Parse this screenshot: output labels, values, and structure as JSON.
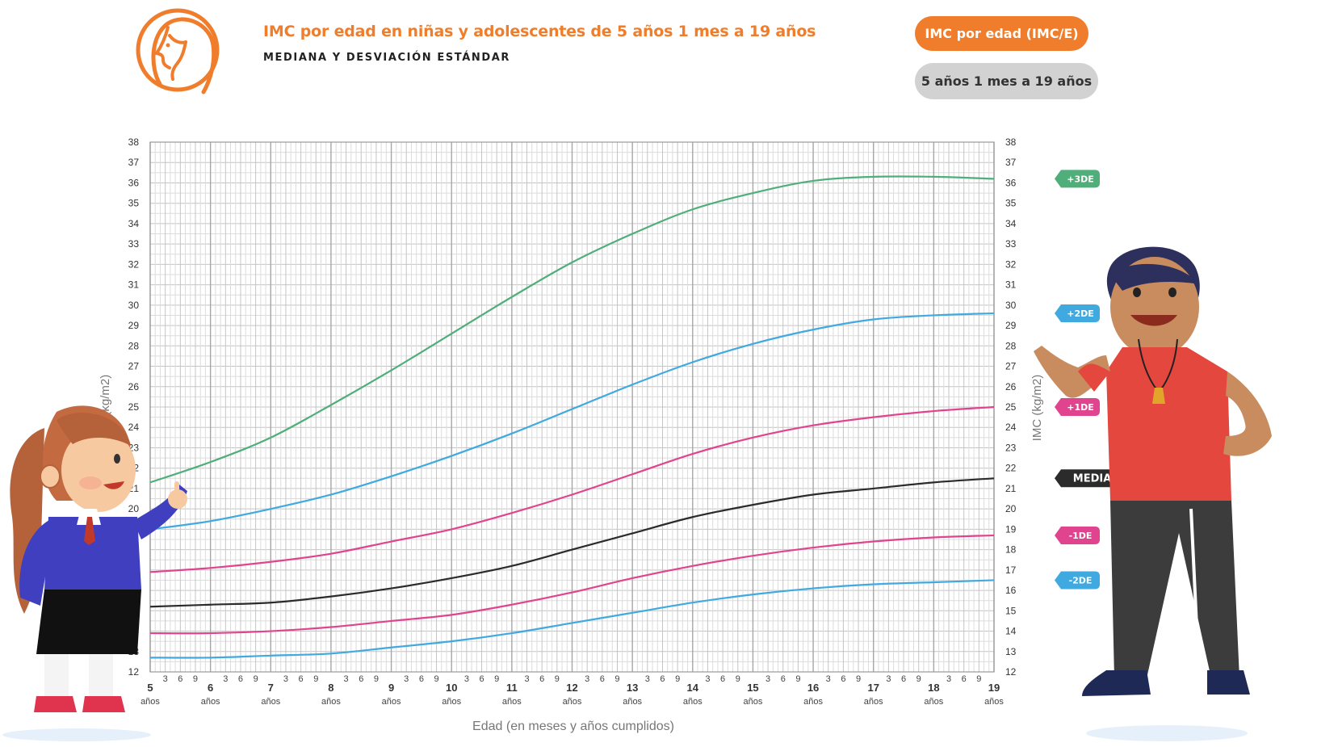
{
  "header": {
    "title": "IMC por edad en niñas y adolescentes de 5 años 1 mes a 19 años",
    "subtitle": "MEDIANA Y DESVIACIÓN ESTÁNDAR",
    "pill_primary": "IMC por edad (IMC/E)",
    "pill_secondary": "5 años 1 mes a 19 años",
    "accent_color": "#ef7d2b",
    "logo_icon": "girl-profile-icon"
  },
  "illustrations": {
    "left": "schoolgirl-pointing-icon",
    "right": "teacher-with-whistle-icon"
  },
  "chart_data": {
    "type": "line",
    "xlabel": "Edad (en meses y años cumplidos)",
    "ylabel": "IMC (kg/m2)",
    "xlim": [
      5,
      19
    ],
    "ylim": [
      12,
      38
    ],
    "y_ticks": [
      12,
      13,
      14,
      15,
      16,
      17,
      18,
      19,
      20,
      21,
      22,
      23,
      24,
      25,
      26,
      27,
      28,
      29,
      30,
      31,
      32,
      33,
      34,
      35,
      36,
      37,
      38
    ],
    "year_ticks": [
      5,
      6,
      7,
      8,
      9,
      10,
      11,
      12,
      13,
      14,
      15,
      16,
      17,
      18,
      19
    ],
    "year_unit": "años",
    "month_ticks": [
      "3",
      "6",
      "9"
    ],
    "grid": true,
    "series": [
      {
        "name": "+3DE",
        "color": "#4fae7a",
        "x": [
          5,
          6,
          7,
          8,
          9,
          10,
          11,
          12,
          13,
          14,
          15,
          16,
          17,
          18,
          19
        ],
        "y": [
          21.3,
          22.3,
          23.5,
          25.1,
          26.8,
          28.6,
          30.4,
          32.1,
          33.5,
          34.7,
          35.5,
          36.1,
          36.3,
          36.3,
          36.2
        ]
      },
      {
        "name": "+2DE",
        "color": "#3fa9e0",
        "x": [
          5,
          6,
          7,
          8,
          9,
          10,
          11,
          12,
          13,
          14,
          15,
          16,
          17,
          18,
          19
        ],
        "y": [
          19.0,
          19.4,
          20.0,
          20.7,
          21.6,
          22.6,
          23.7,
          24.9,
          26.1,
          27.2,
          28.1,
          28.8,
          29.3,
          29.5,
          29.6
        ]
      },
      {
        "name": "+1DE",
        "color": "#e0448e",
        "x": [
          5,
          6,
          7,
          8,
          9,
          10,
          11,
          12,
          13,
          14,
          15,
          16,
          17,
          18,
          19
        ],
        "y": [
          16.9,
          17.1,
          17.4,
          17.8,
          18.4,
          19.0,
          19.8,
          20.7,
          21.7,
          22.7,
          23.5,
          24.1,
          24.5,
          24.8,
          25.0
        ]
      },
      {
        "name": "MEDIANA",
        "color": "#2b2b2b",
        "x": [
          5,
          6,
          7,
          8,
          9,
          10,
          11,
          12,
          13,
          14,
          15,
          16,
          17,
          18,
          19
        ],
        "y": [
          15.2,
          15.3,
          15.4,
          15.7,
          16.1,
          16.6,
          17.2,
          18.0,
          18.8,
          19.6,
          20.2,
          20.7,
          21.0,
          21.3,
          21.5
        ]
      },
      {
        "name": "-1DE",
        "color": "#e0448e",
        "x": [
          5,
          6,
          7,
          8,
          9,
          10,
          11,
          12,
          13,
          14,
          15,
          16,
          17,
          18,
          19
        ],
        "y": [
          13.9,
          13.9,
          14.0,
          14.2,
          14.5,
          14.8,
          15.3,
          15.9,
          16.6,
          17.2,
          17.7,
          18.1,
          18.4,
          18.6,
          18.7
        ]
      },
      {
        "name": "-2DE",
        "color": "#3fa9e0",
        "x": [
          5,
          6,
          7,
          8,
          9,
          10,
          11,
          12,
          13,
          14,
          15,
          16,
          17,
          18,
          19
        ],
        "y": [
          12.7,
          12.7,
          12.8,
          12.9,
          13.2,
          13.5,
          13.9,
          14.4,
          14.9,
          15.4,
          15.8,
          16.1,
          16.3,
          16.4,
          16.5
        ]
      }
    ]
  }
}
